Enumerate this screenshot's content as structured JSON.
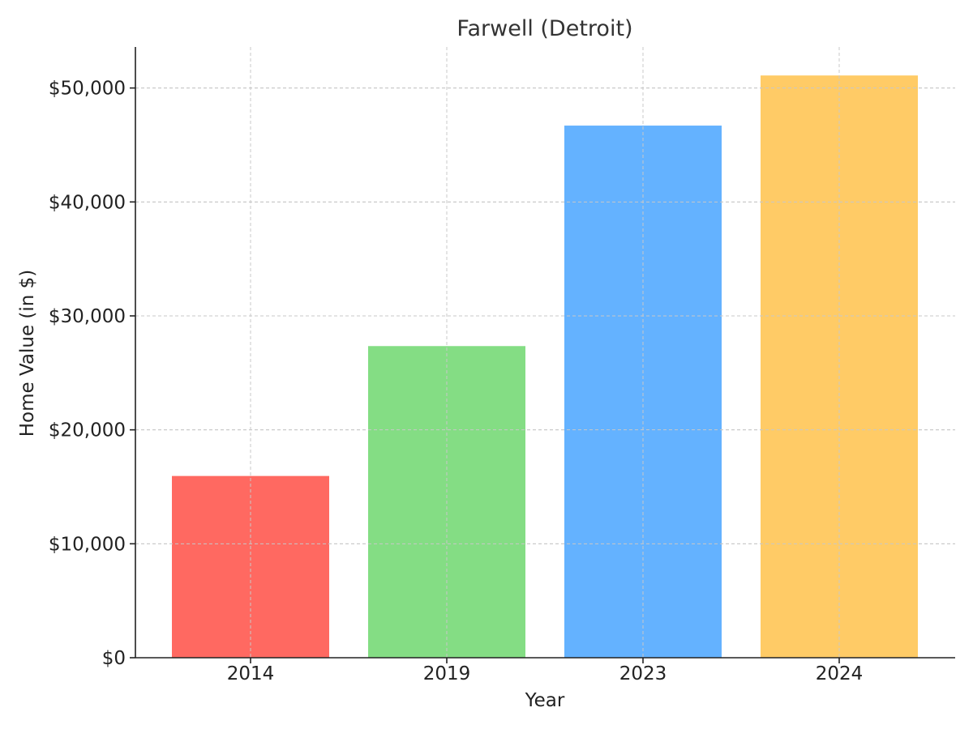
{
  "chart_data": {
    "type": "bar",
    "title": "Farwell (Detroit)",
    "xlabel": "Year",
    "ylabel": "Home Value (in $)",
    "categories": [
      "2014",
      "2019",
      "2023",
      "2024"
    ],
    "values": [
      15950,
      27350,
      46700,
      51100
    ],
    "colors": [
      "#ff6961",
      "#84dd84",
      "#64b2ff",
      "#ffcb66"
    ],
    "ylim": [
      0,
      53600
    ],
    "yticks": [
      0,
      10000,
      20000,
      30000,
      40000,
      50000
    ],
    "ytick_labels": [
      "$0",
      "$10,000",
      "$20,000",
      "$30,000",
      "$40,000",
      "$50,000"
    ],
    "grid": true,
    "legend": "none"
  }
}
